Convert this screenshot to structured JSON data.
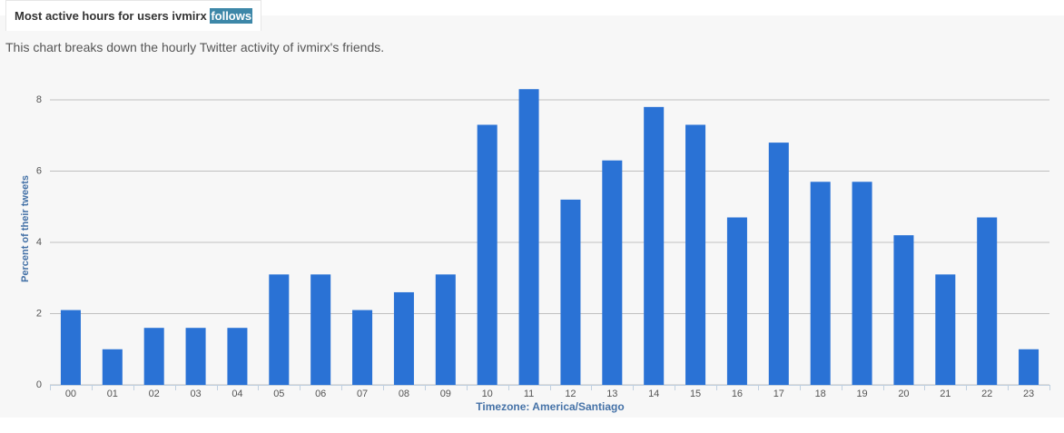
{
  "header": {
    "title": "Most active hours for users ivmirx",
    "tab": "follows"
  },
  "description": "This chart breaks down the hourly Twitter activity of ivmirx's friends.",
  "chart_data": {
    "type": "bar",
    "categories": [
      "00",
      "01",
      "02",
      "03",
      "04",
      "05",
      "06",
      "07",
      "08",
      "09",
      "10",
      "11",
      "12",
      "13",
      "14",
      "15",
      "16",
      "17",
      "18",
      "19",
      "20",
      "21",
      "22",
      "23"
    ],
    "values": [
      2.1,
      1.0,
      1.6,
      1.6,
      1.6,
      3.1,
      3.1,
      2.1,
      2.6,
      3.1,
      7.3,
      8.3,
      5.2,
      6.3,
      7.8,
      7.3,
      4.7,
      6.8,
      5.7,
      5.7,
      4.2,
      3.1,
      4.7,
      1.0
    ],
    "color": "#2a72d5",
    "x_label": "Timezone: America/Santiago",
    "y_label": "Percent of their tweets",
    "ylim": [
      0,
      8.3
    ],
    "yticks": [
      0,
      2,
      4,
      6,
      8
    ],
    "grid": true
  }
}
